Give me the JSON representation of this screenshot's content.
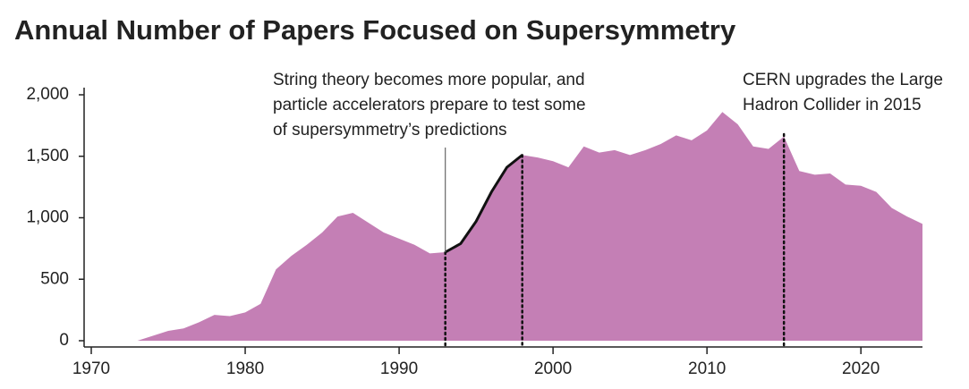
{
  "chart_data": {
    "type": "area",
    "title": "Annual Number of Papers Focused on Supersymmetry",
    "x": [
      1970,
      1971,
      1972,
      1973,
      1974,
      1975,
      1976,
      1977,
      1978,
      1979,
      1980,
      1981,
      1982,
      1983,
      1984,
      1985,
      1986,
      1987,
      1988,
      1989,
      1990,
      1991,
      1992,
      1993,
      1994,
      1995,
      1996,
      1997,
      1998,
      1999,
      2000,
      2001,
      2002,
      2003,
      2004,
      2005,
      2006,
      2007,
      2008,
      2009,
      2010,
      2011,
      2012,
      2013,
      2014,
      2015,
      2016,
      2017,
      2018,
      2019,
      2020,
      2021,
      2022,
      2023,
      2024
    ],
    "values": [
      0,
      0,
      0,
      0,
      40,
      80,
      100,
      150,
      210,
      200,
      230,
      300,
      580,
      690,
      780,
      880,
      1010,
      1040,
      960,
      880,
      830,
      780,
      710,
      720,
      790,
      970,
      1210,
      1410,
      1510,
      1490,
      1460,
      1410,
      1580,
      1530,
      1550,
      1510,
      1550,
      1600,
      1670,
      1630,
      1710,
      1860,
      1760,
      1580,
      1560,
      1660,
      1380,
      1350,
      1360,
      1270,
      1260,
      1210,
      1080,
      1010,
      950
    ],
    "color": "#c47fb5",
    "highlight": {
      "from": 1993,
      "to": 1998,
      "color": "#111111"
    },
    "xlim": [
      1970,
      2024
    ],
    "ylim": [
      0,
      2000
    ],
    "xticks": [
      1970,
      1980,
      1990,
      2000,
      2010,
      2020
    ],
    "yticks": [
      0,
      500,
      {
        "value": 1000,
        "label": "1,000"
      },
      {
        "value": 1500,
        "label": "1,500"
      },
      {
        "value": 2000,
        "label": "2,000"
      }
    ],
    "annotations": [
      {
        "lines": [
          "String theory becomes more popular, and",
          "particle accelerators prepare to test some",
          "of supersymmetry’s predictions"
        ],
        "x": 1993
      },
      {
        "lines": [
          "CERN upgrades the Large",
          "Hadron Collider in 2015"
        ],
        "x": 2015
      }
    ],
    "markers": [
      1993,
      1998,
      2015
    ]
  }
}
